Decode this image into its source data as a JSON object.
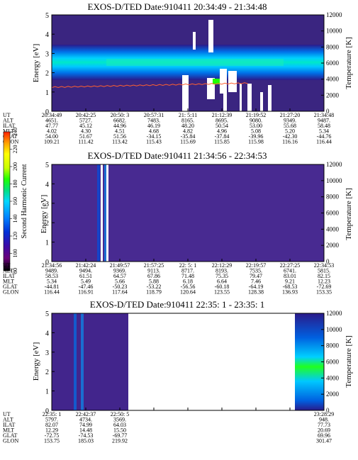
{
  "chart_data": [
    {
      "type": "heatmap",
      "title": "EXOS-D/TED  Date:910411  20:34:49 - 21:34:48",
      "ylabel": "Energy [eV]",
      "y2label": "Temperature [K]",
      "ylim": [
        0,
        5
      ],
      "y2lim": [
        0,
        12000
      ],
      "yticks": [
        "0",
        "1",
        "2",
        "3",
        "4",
        "5"
      ],
      "y2ticks": [
        "0",
        "2000",
        "4000",
        "6000",
        "8000",
        "10000",
        "12000"
      ],
      "ephemeris_labels": [
        "UT",
        "ALT",
        "ILAT",
        "MLT",
        "GLAT",
        "GLON"
      ],
      "ephemeris": [
        [
          "20:34:49",
          "4651.",
          "47.77",
          "4.02",
          "54.00",
          "109.21"
        ],
        [
          "20:42:25",
          "5727.",
          "45.12",
          "4.30",
          "51.67",
          "111.42"
        ],
        [
          "20:50: 3",
          "6682.",
          "44.96",
          "4.51",
          "51.56",
          "113.42"
        ],
        [
          "20:57:31",
          "7483.",
          "46.19",
          "4.68",
          "-34.15",
          "115.43"
        ],
        [
          "21: 5:11",
          "8165.",
          "48.20",
          "4.82",
          "-35.84",
          "115.69"
        ],
        [
          "21:12:39",
          "8695.",
          "50.54",
          "4.96",
          "-37.84",
          "115.85"
        ],
        [
          "21:19:52",
          "9080.",
          "53.00",
          "5.08",
          "-39.96",
          "115.98"
        ],
        [
          "21:27:20",
          "9349.",
          "55.68",
          "5.20",
          "-42.30",
          "116.16"
        ],
        [
          "21:34:48",
          "9487.",
          "58.48",
          "5.34",
          "-44.76",
          "116.44"
        ]
      ],
      "temperature_trace": {
        "start_K": 3000,
        "end_K": 3500,
        "color": "#ff6030"
      }
    },
    {
      "type": "heatmap",
      "title": "EXOS-D/TED  Date:910411  21:34:56 - 22:34:53",
      "ylabel": "Energy [eV]",
      "y2label": "Temperature [K]",
      "ylim": [
        0,
        5
      ],
      "y2lim": [
        0,
        12000
      ],
      "yticks": [
        "0",
        "1",
        "2",
        "3",
        "4",
        "5"
      ],
      "y2ticks": [
        "0",
        "2000",
        "4000",
        "6000",
        "8000",
        "10000",
        "12000"
      ],
      "ephemeris_labels": [
        "UT",
        "ALT",
        "ILAT",
        "MLT",
        "GLAT",
        "GLON"
      ],
      "ephemeris": [
        [
          "21:34:56",
          "9489.",
          "58.53",
          "5.34",
          "-44.81",
          "116.44"
        ],
        [
          "21:42:24",
          "9494.",
          "61.51",
          "5.49",
          "-47.46",
          "116.91"
        ],
        [
          "21:49:57",
          "9369.",
          "64.57",
          "5.66",
          "-50.23",
          "117.64"
        ],
        [
          "21:57:25",
          "9113.",
          "67.86",
          "5.88",
          "-53.22",
          "118.79"
        ],
        [
          "22: 5: 1",
          "8717.",
          "71.48",
          "6.18",
          "-56.56",
          "120.64"
        ],
        [
          "22:12:29",
          "8193.",
          "75.35",
          "6.64",
          "-60.18",
          "123.55"
        ],
        [
          "22:19:57",
          "7535.",
          "79.47",
          "7.46",
          "-64.19",
          "128.38"
        ],
        [
          "22:27:25",
          "6741.",
          "83.01",
          "9.21",
          "-68.53",
          "136.93"
        ],
        [
          "22:34:53",
          "5815.",
          "82.15",
          "12.23",
          "-72.69",
          "153.35"
        ]
      ]
    },
    {
      "type": "heatmap",
      "title": "EXOS-D/TED  Date:910411  22:35: 1 - 23:35: 1",
      "ylabel": "Energy [eV]",
      "y2label": "Temperature [K]",
      "ylim": [
        0,
        5
      ],
      "y2lim": [
        0,
        12000
      ],
      "yticks": [
        "0",
        "1",
        "2",
        "3",
        "4",
        "5"
      ],
      "y2ticks": [
        "0",
        "2000",
        "4000",
        "6000",
        "8000",
        "10000",
        "12000"
      ],
      "ephemeris_labels": [
        "UT",
        "ALT",
        "ILAT",
        "MLT",
        "GLAT",
        "GLON"
      ],
      "ephemeris": [
        [
          "22:35: 1",
          "5797.",
          "82.07",
          "12.29",
          "-72.75",
          "153.75"
        ],
        [
          "22:42:37",
          "4734.",
          "74.99",
          "14.48",
          "-74.53",
          "185.03"
        ],
        [
          "22:50: 5",
          "3569.",
          "64.03",
          "15.50",
          "-69.77",
          "219.92"
        ],
        [
          "",
          "",
          "",
          "",
          "",
          ""
        ],
        [
          "",
          "",
          "",
          "",
          "",
          ""
        ],
        [
          "",
          "",
          "",
          "",
          "",
          ""
        ],
        [
          "",
          "",
          "",
          "",
          "",
          ""
        ],
        [
          "",
          "",
          "",
          "",
          "",
          ""
        ],
        [
          "23:28:29",
          "948.",
          "77.73",
          "20.69",
          "69.96",
          "301.47"
        ]
      ]
    }
  ],
  "colorbar": {
    "label": "Second Harmonic Current",
    "ticks": [
      "80",
      "100",
      "120",
      "140",
      "160",
      "180",
      "200",
      "220",
      "240"
    ],
    "colors": [
      "#000000",
      "#6a007a",
      "#3a0aa8",
      "#0030d8",
      "#0080ff",
      "#00d8ff",
      "#00e080",
      "#20ff00",
      "#c8ff00",
      "#ffff00",
      "#ffa000",
      "#ff2000"
    ]
  }
}
